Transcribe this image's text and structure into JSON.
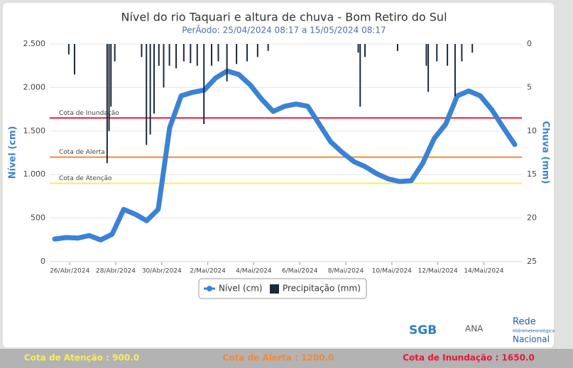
{
  "chart_data": {
    "type": "line",
    "title": "Nível do rio Taquari e altura de chuva - Bom Retiro do Sul",
    "subtitle": "PerÃodo: 25/04/2024 08:17 a 15/05/2024 08:17",
    "y_label": "Nível (cm)",
    "y2_label": "Chuva (mm)",
    "xlim": [
      "2024-04-25 08:17",
      "2024-05-15 08:17"
    ],
    "xticks": [
      {
        "value": "2024-04-26",
        "label": "26/Abr/2024"
      },
      {
        "value": "2024-04-28",
        "label": "28/Abr/2024"
      },
      {
        "value": "2024-04-30",
        "label": "30/Abr/2024"
      },
      {
        "value": "2024-05-02",
        "label": "2/Mai/2024"
      },
      {
        "value": "2024-05-04",
        "label": "4/Mai/2024"
      },
      {
        "value": "2024-05-06",
        "label": "6/Mai/2024"
      },
      {
        "value": "2024-05-08",
        "label": "8/Mai/2024"
      },
      {
        "value": "2024-05-10",
        "label": "10/Mai/2024"
      },
      {
        "value": "2024-05-12",
        "label": "12/Mai/2024"
      },
      {
        "value": "2024-05-14",
        "label": "14/Mai/2024"
      }
    ],
    "ylim": [
      0,
      2500
    ],
    "yticks": [
      0,
      500,
      {
        "value": 1000,
        "label": "1.000"
      },
      {
        "value": 1500,
        "label": "1.500"
      },
      {
        "value": 2000,
        "label": "2.000"
      },
      {
        "value": 2500,
        "label": "2.500"
      }
    ],
    "y2lim": [
      0,
      25
    ],
    "y2_inverted": true,
    "y2ticks": [
      0,
      5,
      10,
      15,
      20,
      25
    ],
    "series": [
      {
        "name": "Nível (cm)",
        "type": "line",
        "color": "#3a82d4",
        "x": [
          "2024-04-25 08:17",
          "2024-04-25 20:17",
          "2024-04-26 08:17",
          "2024-04-26 20:17",
          "2024-04-27 08:17",
          "2024-04-27 20:17",
          "2024-04-28 08:17",
          "2024-04-28 20:17",
          "2024-04-29 08:17",
          "2024-04-29 20:17",
          "2024-04-30 08:17",
          "2024-04-30 20:17",
          "2024-05-01 08:17",
          "2024-05-01 20:17",
          "2024-05-02 08:17",
          "2024-05-02 20:17",
          "2024-05-03 08:17",
          "2024-05-03 20:17",
          "2024-05-04 08:17",
          "2024-05-04 20:17",
          "2024-05-05 08:17",
          "2024-05-05 20:17",
          "2024-05-06 08:17",
          "2024-05-06 20:17",
          "2024-05-07 08:17",
          "2024-05-07 20:17",
          "2024-05-08 08:17",
          "2024-05-08 20:17",
          "2024-05-09 08:17",
          "2024-05-09 20:17",
          "2024-05-10 08:17",
          "2024-05-10 20:17",
          "2024-05-11 08:17",
          "2024-05-11 20:17",
          "2024-05-12 08:17",
          "2024-05-12 20:17",
          "2024-05-13 08:17",
          "2024-05-13 20:17",
          "2024-05-14 08:17",
          "2024-05-14 20:17",
          "2024-05-15 08:17"
        ],
        "values": [
          260,
          277,
          270,
          300,
          250,
          315,
          600,
          545,
          470,
          600,
          1540,
          1905,
          1945,
          1970,
          2110,
          2190,
          2150,
          2030,
          1865,
          1725,
          1785,
          1810,
          1785,
          1580,
          1375,
          1255,
          1150,
          1090,
          1010,
          950,
          920,
          930,
          1130,
          1415,
          1580,
          1905,
          1960,
          1905,
          1745,
          1540,
          1345
        ]
      },
      {
        "name": "Precipitação (mm)",
        "type": "bar",
        "axis": "y2",
        "color": "#1b2a3a",
        "x": [
          "2024-04-25 23:00",
          "2024-04-26 05:00",
          "2024-04-27 15:00",
          "2024-04-27 17:00",
          "2024-04-27 19:00",
          "2024-04-27 23:00",
          "2024-04-29 03:00",
          "2024-04-29 08:00",
          "2024-04-29 12:00",
          "2024-04-29 16:00",
          "2024-04-29 21:00",
          "2024-04-30 02:00",
          "2024-04-30 08:00",
          "2024-04-30 15:00",
          "2024-04-30 23:00",
          "2024-05-01 06:00",
          "2024-05-01 13:00",
          "2024-05-01 20:00",
          "2024-05-02 04:00",
          "2024-05-02 11:00",
          "2024-05-02 20:00",
          "2024-05-03 06:00",
          "2024-05-03 17:00",
          "2024-05-04 04:00",
          "2024-05-04 15:00",
          "2024-05-08 13:00",
          "2024-05-08 15:00",
          "2024-05-08 20:00",
          "2024-05-10 06:00",
          "2024-05-11 12:00",
          "2024-05-11 14:00",
          "2024-05-11 23:00",
          "2024-05-12 10:00",
          "2024-05-12 18:00",
          "2024-05-13 01:00",
          "2024-05-13 12:00"
        ],
        "values": [
          1.2,
          3.5,
          13.7,
          10,
          7.2,
          2,
          1.5,
          11.6,
          10.4,
          8,
          2.5,
          5,
          2.5,
          2.8,
          2,
          2.2,
          2.5,
          9.2,
          2.5,
          2,
          4.3,
          2.3,
          2,
          1.5,
          0.8,
          1,
          7.2,
          1.5,
          0.8,
          2.5,
          5.5,
          2,
          2.5,
          6,
          2,
          1
        ]
      }
    ],
    "thresholds": [
      {
        "name": "Cota de Inundação",
        "value": 1650,
        "color": "#e8173a"
      },
      {
        "name": "Cota de Alerta",
        "value": 1200,
        "color": "#f08a3c"
      },
      {
        "name": "Cota de Atenção",
        "value": 900,
        "color": "#f5ee5a"
      }
    ]
  },
  "logos": {
    "sgb": "SGB",
    "ana": "ANA",
    "rede": "Rede",
    "rede_sub": "Hidrometeorológica",
    "rede_name": "Nacional"
  },
  "footer": [
    "Cota de Atenção : 900.0",
    "Cota de Alerta : 1200.0",
    "Cota de Inundação : 1650.0"
  ]
}
